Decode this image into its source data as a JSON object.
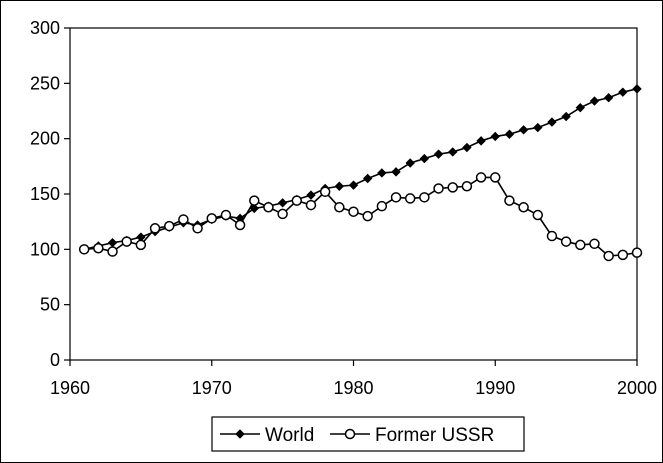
{
  "chart_data": {
    "type": "line",
    "title": "",
    "xlabel": "",
    "ylabel": "",
    "xlim": [
      1960,
      2000
    ],
    "ylim": [
      0,
      300
    ],
    "x_ticks": [
      1960,
      1970,
      1980,
      1990,
      2000
    ],
    "y_ticks": [
      0,
      50,
      100,
      150,
      200,
      250,
      300
    ],
    "grid": false,
    "legend_position": "bottom",
    "x": [
      1961,
      1962,
      1963,
      1964,
      1965,
      1966,
      1967,
      1968,
      1969,
      1970,
      1971,
      1972,
      1973,
      1974,
      1975,
      1976,
      1977,
      1978,
      1979,
      1980,
      1981,
      1982,
      1983,
      1984,
      1985,
      1986,
      1987,
      1988,
      1989,
      1990,
      1991,
      1992,
      1993,
      1994,
      1995,
      1996,
      1997,
      1998,
      1999,
      2000
    ],
    "series": [
      {
        "name": "World",
        "marker": "filled-diamond",
        "color": "#000000",
        "values": [
          100,
          103,
          106,
          108,
          111,
          116,
          120,
          124,
          122,
          127,
          130,
          128,
          137,
          139,
          142,
          145,
          149,
          155,
          157,
          158,
          164,
          169,
          170,
          178,
          182,
          186,
          188,
          192,
          198,
          202,
          204,
          208,
          210,
          215,
          220,
          228,
          234,
          237,
          242,
          245
        ]
      },
      {
        "name": "Former USSR",
        "marker": "open-circle",
        "color": "#000000",
        "values": [
          100,
          101,
          98,
          107,
          104,
          119,
          121,
          127,
          119,
          128,
          131,
          122,
          144,
          138,
          132,
          144,
          140,
          152,
          138,
          134,
          130,
          139,
          147,
          146,
          147,
          155,
          156,
          157,
          165,
          165,
          144,
          138,
          131,
          112,
          107,
          104,
          105,
          94,
          95,
          97
        ]
      }
    ]
  }
}
